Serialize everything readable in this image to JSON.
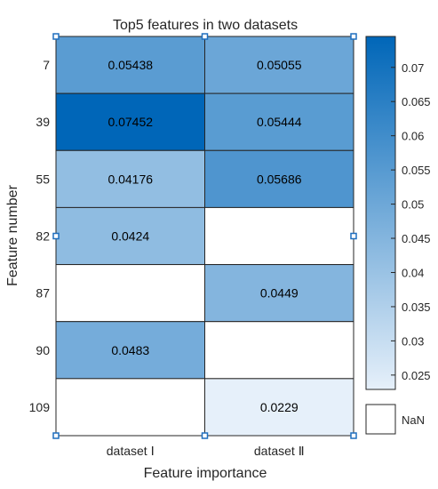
{
  "chart_data": {
    "type": "heatmap",
    "title": "Top5 features in two datasets",
    "xlabel": "Feature importance",
    "ylabel": "Feature number",
    "x_categories": [
      "dataset Ⅰ",
      "dataset Ⅱ"
    ],
    "y_categories": [
      "7",
      "39",
      "55",
      "82",
      "87",
      "90",
      "109"
    ],
    "values": [
      [
        0.05438,
        0.05055
      ],
      [
        0.07452,
        0.05444
      ],
      [
        0.04176,
        0.05686
      ],
      [
        0.0424,
        null
      ],
      [
        null,
        0.0449
      ],
      [
        0.0483,
        null
      ],
      [
        null,
        0.0229
      ]
    ],
    "cell_labels": [
      [
        "0.05438",
        "0.05055"
      ],
      [
        "0.07452",
        "0.05444"
      ],
      [
        "0.04176",
        "0.05686"
      ],
      [
        "0.0424",
        ""
      ],
      [
        "",
        "0.0449"
      ],
      [
        "0.0483",
        ""
      ],
      [
        "",
        "0.0229"
      ]
    ],
    "colorbar": {
      "min": 0.0229,
      "max": 0.07452,
      "ticks": [
        "0.025",
        "0.03",
        "0.035",
        "0.04",
        "0.045",
        "0.05",
        "0.055",
        "0.06",
        "0.065",
        "0.07"
      ],
      "nan_label": "NaN",
      "color_low": "#e6f0fa",
      "color_high": "#0066b8"
    }
  }
}
